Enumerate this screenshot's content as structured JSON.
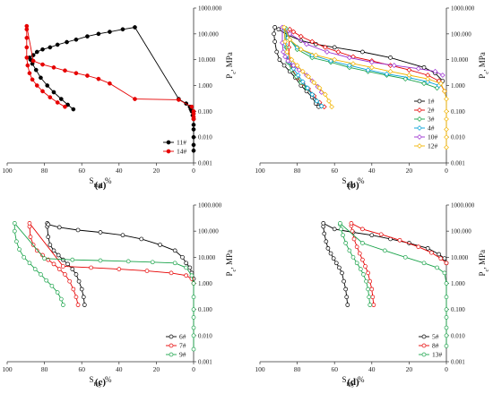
{
  "chart_data": [
    {
      "panel": "(a)",
      "type": "line",
      "xlabel": "S_Hg, %",
      "ylabel": "P_c, MPa",
      "x_reversed": true,
      "xlim": [
        100,
        0
      ],
      "ylim": [
        0.001,
        1000
      ],
      "y_log": true,
      "x_ticks": [
        "100",
        "80",
        "60",
        "40",
        "20",
        "0"
      ],
      "y_ticks": [
        "0.001",
        "0.010",
        "0.100",
        "1.000",
        "10.000",
        "100.000",
        "1000.000"
      ],
      "legend_position": "bottom-right",
      "series": [
        {
          "name": "11#",
          "color": "#000000",
          "marker": "filled-circle",
          "x": [
            64.5,
            67.5,
            71,
            75,
            78.5,
            82,
            84.5,
            86.5,
            87.5,
            88,
            86,
            84,
            81,
            77,
            73,
            68,
            63,
            57,
            51,
            45,
            38,
            31.5,
            8,
            4,
            2,
            1.5,
            1,
            0.5,
            0,
            0,
            0,
            0,
            0,
            0
          ],
          "y": [
            0.12,
            0.18,
            0.3,
            0.55,
            1,
            2,
            4,
            7,
            10,
            12,
            15,
            20,
            25,
            30,
            38,
            48,
            60,
            80,
            100,
            120,
            150,
            180,
            0.3,
            0.2,
            0.15,
            0.12,
            0.1,
            0.07,
            0.05,
            0.03,
            0.02,
            0.01,
            0.005,
            0.003
          ]
        },
        {
          "name": "14#",
          "color": "#e60000",
          "marker": "filled-circle",
          "x": [
            69,
            73,
            77,
            81,
            84,
            86.5,
            88,
            89,
            89.5,
            89.5,
            89.5,
            89.5,
            89.5,
            86,
            81,
            75,
            69,
            63,
            57,
            51,
            45,
            31.5,
            8,
            1,
            0,
            0,
            0,
            0
          ],
          "y": [
            0.15,
            0.22,
            0.35,
            0.6,
            1,
            1.7,
            3,
            6,
            12,
            30,
            70,
            150,
            200,
            9,
            6.5,
            5,
            3.8,
            3,
            2.4,
            1.8,
            1.2,
            0.3,
            0.28,
            0.15,
            0.1,
            0.08,
            0.06,
            0.05
          ]
        }
      ]
    },
    {
      "panel": "(b)",
      "type": "line",
      "xlabel": "S_Hg, %",
      "ylabel": "P_c, MPa",
      "x_reversed": true,
      "xlim": [
        100,
        0
      ],
      "ylim": [
        0.001,
        1000
      ],
      "y_log": true,
      "x_ticks": [
        "100",
        "80",
        "60",
        "40",
        "20",
        "0"
      ],
      "y_ticks": [
        "0.001",
        "0.010",
        "0.100",
        "1.000",
        "10.000",
        "100.000",
        "1000.000"
      ],
      "legend_position": "bottom-right",
      "series": [
        {
          "name": "1#",
          "color": "#000000",
          "marker": "open-circle",
          "x": [
            68.5,
            70,
            72,
            75,
            78,
            81,
            84,
            87,
            89.5,
            91,
            92,
            92.5,
            92,
            90,
            85,
            78,
            70,
            60,
            45,
            30,
            12,
            6,
            2
          ],
          "y": [
            0.15,
            0.2,
            0.35,
            0.6,
            1,
            2,
            3.5,
            6,
            10,
            20,
            50,
            100,
            180,
            150,
            90,
            55,
            40,
            30,
            20,
            12,
            5,
            3,
            1.5
          ]
        },
        {
          "name": "2#",
          "color": "#e60000",
          "marker": "open-diamond",
          "x": [
            65.5,
            68,
            71,
            74,
            77,
            80,
            82.5,
            84,
            84.5,
            84,
            82,
            78,
            72,
            65,
            58,
            50,
            40,
            30,
            20,
            10,
            4,
            1
          ],
          "y": [
            0.15,
            0.22,
            0.4,
            0.75,
            1.2,
            2,
            4,
            8,
            30,
            150,
            120,
            80,
            50,
            30,
            20,
            13,
            9,
            6,
            4,
            2.5,
            1.5,
            0.6
          ]
        },
        {
          "name": "3#",
          "color": "#1aa34a",
          "marker": "open-diamond",
          "x": [
            67,
            69.5,
            72,
            75,
            78,
            80.5,
            83,
            85,
            86,
            86,
            84,
            80,
            72,
            62,
            52,
            42,
            32,
            22,
            12,
            5
          ],
          "y": [
            0.16,
            0.25,
            0.45,
            0.8,
            1.3,
            2.2,
            4,
            8,
            30,
            160,
            60,
            25,
            12,
            8,
            5,
            3.5,
            2.5,
            1.8,
            1.2,
            0.8
          ]
        },
        {
          "name": "4#",
          "color": "#00a0d8",
          "marker": "open-diamond",
          "x": [
            67,
            69.5,
            72,
            74.5,
            77,
            79.5,
            82,
            84,
            85.5,
            86.5,
            87,
            85,
            80,
            72,
            62,
            52,
            42,
            32,
            20,
            10,
            4
          ],
          "y": [
            0.16,
            0.25,
            0.45,
            0.8,
            1.4,
            2.5,
            4.5,
            8,
            15,
            40,
            160,
            70,
            30,
            15,
            9,
            6,
            4,
            2.8,
            2,
            1.4,
            1
          ]
        },
        {
          "name": "10#",
          "color": "#9b30d0",
          "marker": "open-diamond",
          "x": [
            67,
            69,
            72,
            75,
            79,
            82,
            85,
            86.5,
            87.5,
            88,
            88,
            84,
            75,
            64,
            52,
            40,
            28,
            15,
            6,
            2
          ],
          "y": [
            0.55,
            0.9,
            1.5,
            2.5,
            4,
            6,
            9,
            13,
            20,
            45,
            180,
            100,
            40,
            20,
            12,
            8,
            6,
            4.5,
            3.5,
            2.5
          ]
        },
        {
          "name": "12#",
          "color": "#f2b400",
          "marker": "open-diamond",
          "x": [
            61.5,
            63,
            65,
            68,
            71,
            74,
            77,
            80,
            83,
            85.5,
            86.5,
            87,
            84,
            78,
            70,
            60,
            50,
            40,
            30,
            20,
            10,
            3,
            1,
            0,
            0,
            0,
            0,
            0,
            0
          ],
          "y": [
            0.15,
            0.25,
            0.45,
            0.8,
            1.3,
            2.2,
            3.5,
            6,
            10,
            20,
            50,
            180,
            60,
            25,
            15,
            10,
            7,
            5,
            3.5,
            2.5,
            1.8,
            1.2,
            0.6,
            0.3,
            0.1,
            0.05,
            0.02,
            0.01,
            0.004
          ]
        }
      ]
    },
    {
      "panel": "(c)",
      "type": "line",
      "xlabel": "S_Hg, %",
      "ylabel": "P_c, MPa",
      "x_reversed": true,
      "xlim": [
        100,
        0
      ],
      "ylim": [
        0.001,
        1000
      ],
      "y_log": true,
      "x_ticks": [
        "100",
        "80",
        "60",
        "40",
        "20",
        "0"
      ],
      "y_ticks": [
        "0.001",
        "0.010",
        "0.100",
        "1.000",
        "10.000",
        "100.000",
        "1000.000"
      ],
      "legend_position": "bottom-right",
      "series": [
        {
          "name": "6#",
          "color": "#000000",
          "marker": "open-circle",
          "x": [
            58.5,
            59,
            60,
            61.5,
            63,
            65,
            67.5,
            70,
            72.5,
            75,
            77,
            78,
            78.5,
            78.5,
            78,
            72,
            62,
            50,
            38,
            28,
            18,
            10,
            6,
            4,
            2,
            1,
            0
          ],
          "y": [
            0.15,
            0.3,
            0.6,
            1.2,
            2.2,
            3.5,
            5.5,
            8,
            12,
            18,
            30,
            60,
            150,
            200,
            180,
            140,
            110,
            90,
            70,
            50,
            30,
            18,
            10,
            6,
            4,
            2.5,
            1.5
          ]
        },
        {
          "name": "7#",
          "color": "#e60000",
          "marker": "open-circle",
          "x": [
            62,
            63,
            64.5,
            66.5,
            69,
            72,
            75,
            78,
            81,
            84,
            86,
            87.5,
            88,
            88,
            70,
            55,
            40,
            25,
            12,
            4,
            1,
            0
          ],
          "y": [
            0.15,
            0.3,
            0.6,
            1.2,
            2.2,
            3.5,
            5.5,
            8,
            12,
            18,
            30,
            60,
            150,
            200,
            4.5,
            4,
            3.5,
            3,
            2.5,
            2,
            1.5,
            1
          ]
        },
        {
          "name": "9#",
          "color": "#1aa34a",
          "marker": "open-circle",
          "x": [
            70,
            71,
            73,
            76,
            79,
            82,
            85,
            88,
            91,
            93.5,
            95,
            96,
            96,
            80,
            65,
            50,
            35,
            22,
            10,
            4,
            1,
            0,
            0,
            0,
            0,
            0,
            0,
            0
          ],
          "y": [
            0.15,
            0.25,
            0.45,
            0.8,
            1.3,
            2.2,
            3.5,
            6,
            10,
            20,
            40,
            100,
            200,
            9,
            8,
            7.5,
            7,
            6.5,
            6,
            4,
            2,
            1,
            0.3,
            0.1,
            0.05,
            0.02,
            0.01,
            0.003
          ]
        }
      ]
    },
    {
      "panel": "(d)",
      "type": "line",
      "xlabel": "S_Hg, %",
      "ylabel": "P_c, MPa",
      "x_reversed": true,
      "xlim": [
        100,
        0
      ],
      "ylim": [
        0.001,
        1000
      ],
      "y_log": true,
      "x_ticks": [
        "100",
        "80",
        "60",
        "40",
        "20",
        "0"
      ],
      "y_ticks": [
        "0.001",
        "0.010",
        "0.100",
        "1.000",
        "10.000",
        "100.000",
        "1000.000"
      ],
      "legend_position": "bottom-right",
      "series": [
        {
          "name": "5#",
          "color": "#000000",
          "marker": "open-circle",
          "x": [
            53,
            53.5,
            54,
            55,
            56,
            57.5,
            59,
            60.5,
            62,
            63.5,
            64.5,
            65.5,
            66,
            66,
            60,
            50,
            40,
            30,
            20,
            10,
            4,
            1,
            0
          ],
          "y": [
            0.15,
            0.3,
            0.6,
            1.2,
            2.5,
            4,
            6,
            9,
            14,
            22,
            40,
            80,
            150,
            200,
            120,
            90,
            70,
            50,
            35,
            22,
            13,
            9,
            6
          ]
        },
        {
          "name": "8#",
          "color": "#e60000",
          "marker": "open-circle",
          "x": [
            39,
            39.5,
            40,
            41,
            42,
            43.5,
            45,
            46.5,
            48,
            49.5,
            50.5,
            51,
            51,
            45,
            35,
            25,
            15,
            8,
            3,
            0
          ],
          "y": [
            0.15,
            0.3,
            0.6,
            1.2,
            2.5,
            4.5,
            8,
            14,
            25,
            50,
            100,
            160,
            200,
            120,
            75,
            45,
            25,
            15,
            9,
            6
          ]
        },
        {
          "name": "13#",
          "color": "#1aa34a",
          "marker": "open-circle",
          "x": [
            41,
            41.5,
            42,
            43,
            44.5,
            46,
            48,
            50,
            52,
            54,
            55.5,
            56.5,
            57,
            57,
            45,
            33,
            22,
            12,
            5,
            1,
            0,
            0,
            0,
            0,
            0,
            0,
            0
          ],
          "y": [
            0.15,
            0.3,
            0.6,
            1.2,
            2.2,
            3.5,
            6,
            10,
            18,
            35,
            70,
            120,
            180,
            200,
            35,
            18,
            10,
            6,
            4,
            2.5,
            1,
            0.3,
            0.1,
            0.05,
            0.02,
            0.01,
            0.004
          ]
        }
      ]
    }
  ]
}
